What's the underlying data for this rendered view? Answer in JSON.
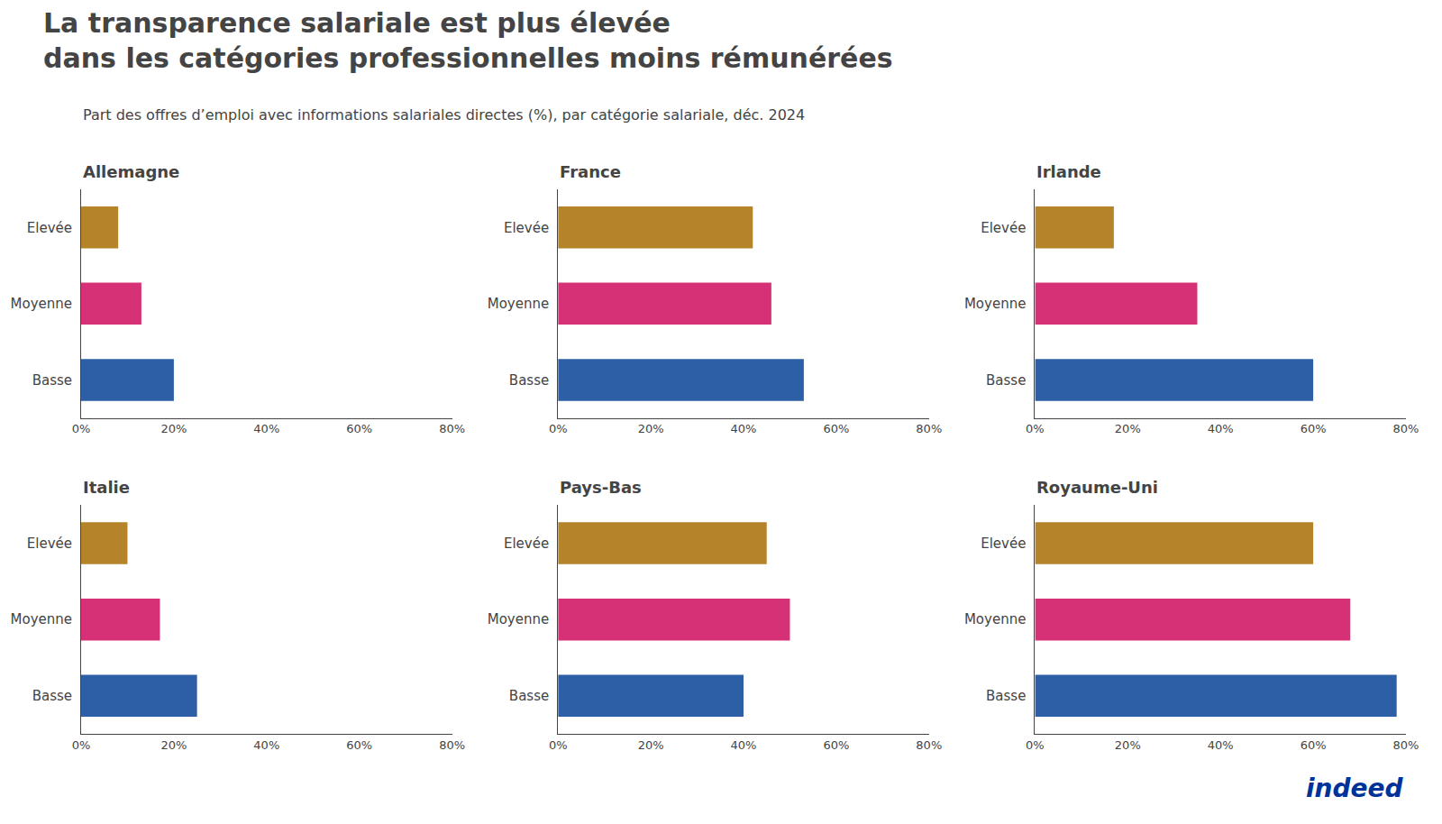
{
  "title": "La transparence salariale est plus élevée\ndans les catégories professionnelles moins rémunérées",
  "subtitle": "Part des offres d’emploi avec informations salariales directes (%), par catégorie salariale, déc. 2024",
  "annotations": [
    {
      "text": "indeed",
      "color": "#003399"
    }
  ],
  "chart_data": [
    {
      "type": "bar",
      "title": "Allemagne",
      "orientation": "horizontal",
      "grid": false,
      "categories": [
        "Elevée",
        "Moyenne",
        "Basse"
      ],
      "values": [
        8,
        13,
        20
      ],
      "colors": [
        "#b5832a",
        "#d63177",
        "#2d5fa6"
      ],
      "xlim": [
        0,
        80
      ],
      "xticks": [
        {
          "value": 0,
          "label": "0%"
        },
        {
          "value": 20,
          "label": "20%"
        },
        {
          "value": 40,
          "label": "40%"
        },
        {
          "value": 60,
          "label": "60%"
        },
        {
          "value": 80,
          "label": "80%"
        }
      ]
    },
    {
      "type": "bar",
      "title": "France",
      "orientation": "horizontal",
      "grid": false,
      "categories": [
        "Elevée",
        "Moyenne",
        "Basse"
      ],
      "values": [
        42,
        46,
        53
      ],
      "colors": [
        "#b5832a",
        "#d63177",
        "#2d5fa6"
      ],
      "xlim": [
        0,
        80
      ],
      "xticks": [
        {
          "value": 0,
          "label": "0%"
        },
        {
          "value": 20,
          "label": "20%"
        },
        {
          "value": 40,
          "label": "40%"
        },
        {
          "value": 60,
          "label": "60%"
        },
        {
          "value": 80,
          "label": "80%"
        }
      ]
    },
    {
      "type": "bar",
      "title": "Irlande",
      "orientation": "horizontal",
      "grid": false,
      "categories": [
        "Elevée",
        "Moyenne",
        "Basse"
      ],
      "values": [
        17,
        35,
        60
      ],
      "colors": [
        "#b5832a",
        "#d63177",
        "#2d5fa6"
      ],
      "xlim": [
        0,
        80
      ],
      "xticks": [
        {
          "value": 0,
          "label": "0%"
        },
        {
          "value": 20,
          "label": "20%"
        },
        {
          "value": 40,
          "label": "40%"
        },
        {
          "value": 60,
          "label": "60%"
        },
        {
          "value": 80,
          "label": "80%"
        }
      ]
    },
    {
      "type": "bar",
      "title": "Italie",
      "orientation": "horizontal",
      "grid": false,
      "categories": [
        "Elevée",
        "Moyenne",
        "Basse"
      ],
      "values": [
        10,
        17,
        25
      ],
      "colors": [
        "#b5832a",
        "#d63177",
        "#2d5fa6"
      ],
      "xlim": [
        0,
        80
      ],
      "xticks": [
        {
          "value": 0,
          "label": "0%"
        },
        {
          "value": 20,
          "label": "20%"
        },
        {
          "value": 40,
          "label": "40%"
        },
        {
          "value": 60,
          "label": "60%"
        },
        {
          "value": 80,
          "label": "80%"
        }
      ]
    },
    {
      "type": "bar",
      "title": "Pays-Bas",
      "orientation": "horizontal",
      "grid": false,
      "categories": [
        "Elevée",
        "Moyenne",
        "Basse"
      ],
      "values": [
        45,
        50,
        40
      ],
      "colors": [
        "#b5832a",
        "#d63177",
        "#2d5fa6"
      ],
      "xlim": [
        0,
        80
      ],
      "xticks": [
        {
          "value": 0,
          "label": "0%"
        },
        {
          "value": 20,
          "label": "20%"
        },
        {
          "value": 40,
          "label": "40%"
        },
        {
          "value": 60,
          "label": "60%"
        },
        {
          "value": 80,
          "label": "80%"
        }
      ]
    },
    {
      "type": "bar",
      "title": "Royaume-Uni",
      "orientation": "horizontal",
      "grid": false,
      "categories": [
        "Elevée",
        "Moyenne",
        "Basse"
      ],
      "values": [
        60,
        68,
        78
      ],
      "colors": [
        "#b5832a",
        "#d63177",
        "#2d5fa6"
      ],
      "xlim": [
        0,
        80
      ],
      "xticks": [
        {
          "value": 0,
          "label": "0%"
        },
        {
          "value": 20,
          "label": "20%"
        },
        {
          "value": 40,
          "label": "40%"
        },
        {
          "value": 60,
          "label": "60%"
        },
        {
          "value": 80,
          "label": "80%"
        }
      ]
    }
  ]
}
